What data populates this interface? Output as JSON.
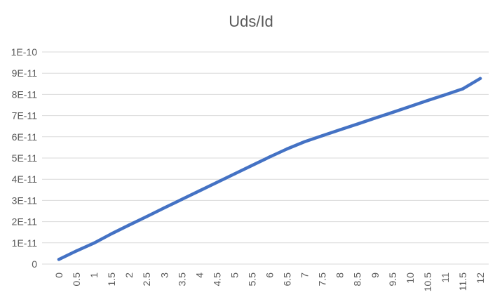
{
  "chart_data": {
    "type": "line",
    "title": "Uds/Id",
    "xlabel": "",
    "ylabel": "",
    "x": [
      0,
      0.5,
      1,
      1.5,
      2,
      2.5,
      3,
      3.5,
      4,
      4.5,
      5,
      5.5,
      6,
      6.5,
      7,
      7.5,
      8,
      8.5,
      9,
      9.5,
      10,
      10.5,
      11,
      11.5,
      12
    ],
    "x_tick_labels": [
      "0",
      "0.5",
      "1",
      "1.5",
      "2",
      "2.5",
      "3",
      "3.5",
      "4",
      "4.5",
      "5",
      "5.5",
      "6",
      "6.5",
      "7",
      "7.5",
      "8",
      "8.5",
      "9",
      "9.5",
      "10",
      "10.5",
      "11",
      "11.5",
      "12"
    ],
    "y_tick_labels": [
      "0",
      "1E-11",
      "2E-11",
      "3E-11",
      "4E-11",
      "5E-11",
      "6E-11",
      "7E-11",
      "8E-11",
      "9E-11",
      "1E-10"
    ],
    "ylim": [
      0,
      1e-10
    ],
    "grid": true,
    "legend": "none",
    "series": [
      {
        "color": "#4472C4",
        "values": [
          2.2e-12,
          6.2e-12,
          9.9e-12,
          1.43e-11,
          1.84e-11,
          2.24e-11,
          2.65e-11,
          3.05e-11,
          3.45e-11,
          3.85e-11,
          4.25e-11,
          4.65e-11,
          5.05e-11,
          5.43e-11,
          5.77e-11,
          6.05e-11,
          6.33e-11,
          6.6e-11,
          6.88e-11,
          7.15e-11,
          7.43e-11,
          7.71e-11,
          7.98e-11,
          8.26e-11,
          8.75e-11
        ]
      }
    ]
  }
}
